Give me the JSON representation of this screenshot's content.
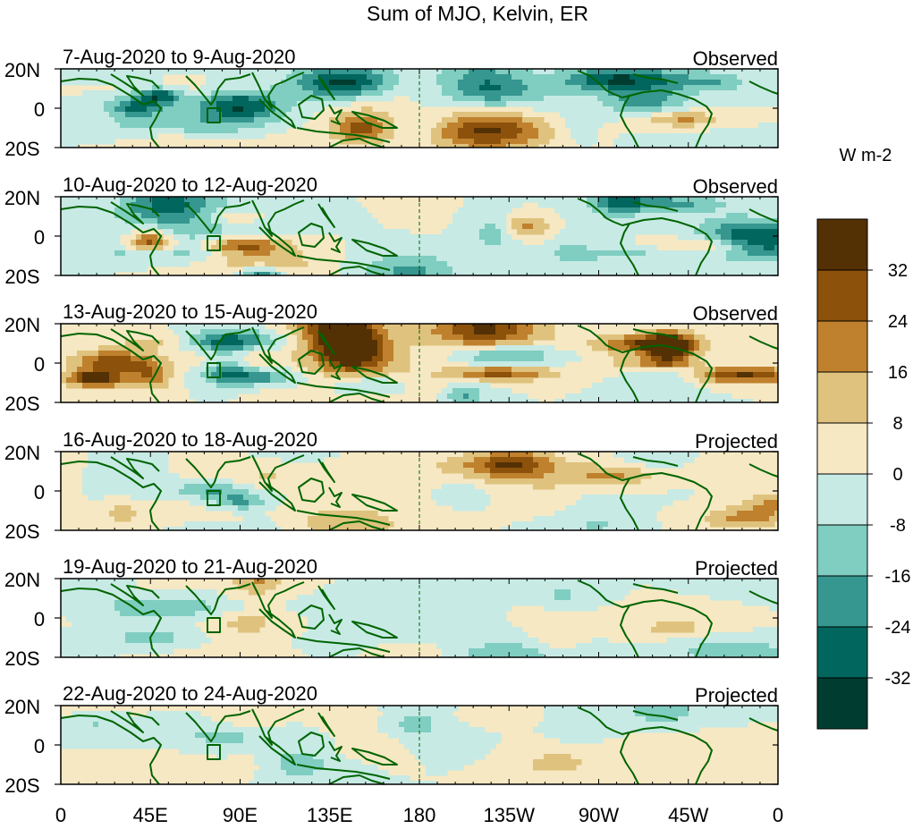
{
  "title": "Sum of MJO, Kelvin, ER",
  "panels": [
    {
      "date_range": "7-Aug-2020 to 9-Aug-2020",
      "status": "Observed",
      "intensity": 1.0,
      "seed": 3
    },
    {
      "date_range": "10-Aug-2020 to 12-Aug-2020",
      "status": "Observed",
      "intensity": 0.95,
      "seed": 11
    },
    {
      "date_range": "13-Aug-2020 to 15-Aug-2020",
      "status": "Observed",
      "intensity": 1.05,
      "seed": 23
    },
    {
      "date_range": "16-Aug-2020 to 18-Aug-2020",
      "status": "Projected",
      "intensity": 0.55,
      "seed": 37
    },
    {
      "date_range": "19-Aug-2020 to 21-Aug-2020",
      "status": "Projected",
      "intensity": 0.42,
      "seed": 41
    },
    {
      "date_range": "22-Aug-2020 to 24-Aug-2020",
      "status": "Projected",
      "intensity": 0.35,
      "seed": 53
    }
  ],
  "y_tick_labels": [
    "20N",
    "0",
    "20S"
  ],
  "x_tick_labels": [
    "0",
    "45E",
    "90E",
    "135E",
    "180",
    "135W",
    "90W",
    "45W",
    "0"
  ],
  "colorbar": {
    "unit_label": "W m-2",
    "tick_labels": [
      "32",
      "24",
      "16",
      "8",
      "0",
      "-8",
      "-16",
      "-24",
      "-32"
    ],
    "colors": [
      "#543005",
      "#8c510a",
      "#bf812d",
      "#dfc27d",
      "#f6e8c3",
      "#c7eae5",
      "#80cdc1",
      "#35978f",
      "#01665e",
      "#003c30"
    ]
  },
  "coastline_color": "#006400"
}
